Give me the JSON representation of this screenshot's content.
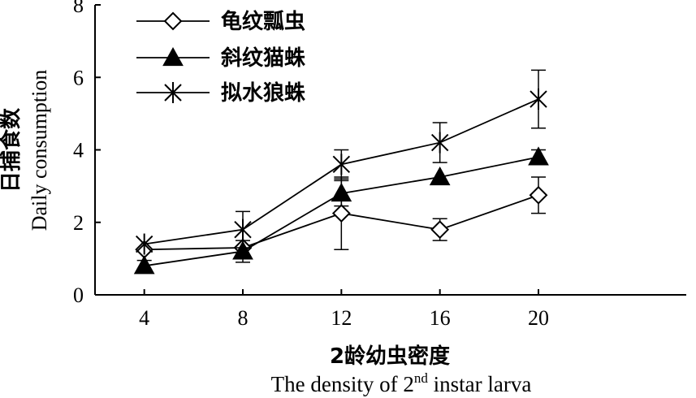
{
  "chart_data": {
    "type": "line",
    "x": [
      4,
      8,
      12,
      16,
      20
    ],
    "xticks": [
      "4",
      "8",
      "12",
      "16",
      "20"
    ],
    "yticks": [
      "0",
      "2",
      "4",
      "6",
      "8"
    ],
    "xlim": [
      2,
      26
    ],
    "ylim": [
      0,
      8
    ],
    "xlabel_cn": "2龄幼虫密度",
    "xlabel_en_pre": "The density of 2",
    "xlabel_en_sup": "nd",
    "xlabel_en_post": " instar larva",
    "ylabel_cn": "日捕食数",
    "ylabel_en": "Daily consumption",
    "legend_position": "top-left",
    "series": [
      {
        "name": "龟纹瓢虫",
        "marker": "diamond-open",
        "values": [
          1.25,
          1.3,
          2.25,
          1.8,
          2.75
        ],
        "errors": [
          0.0,
          0.0,
          1.0,
          0.3,
          0.5
        ]
      },
      {
        "name": "斜纹猫蛛",
        "marker": "triangle-filled",
        "values": [
          0.8,
          1.2,
          2.8,
          3.25,
          3.8
        ],
        "errors": [
          0.15,
          0.3,
          0.35,
          0.0,
          0.2
        ]
      },
      {
        "name": "拟水狼蛛",
        "marker": "asterisk",
        "values": [
          1.4,
          1.8,
          3.6,
          4.2,
          5.4
        ],
        "errors": [
          0.0,
          0.5,
          0.4,
          0.55,
          0.8
        ]
      }
    ]
  }
}
